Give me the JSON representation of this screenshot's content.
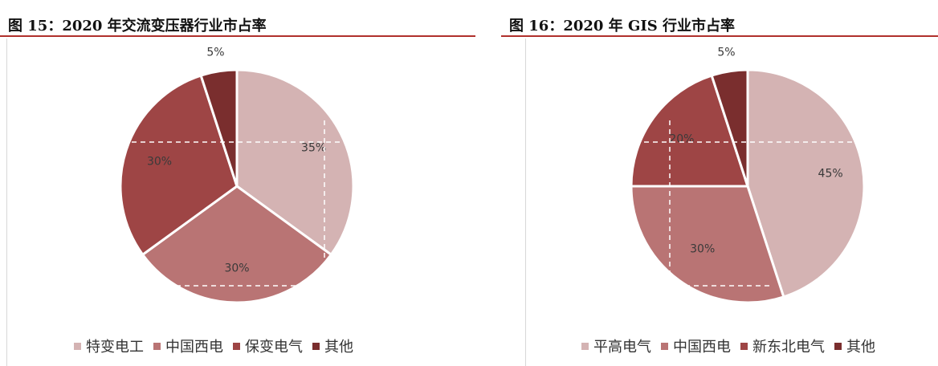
{
  "chart_data": [
    {
      "type": "pie",
      "title": "图 15：2020 年交流变压器行业市占率",
      "categories": [
        "特变电工",
        "中国西电",
        "保变电气",
        "其他"
      ],
      "values": [
        35,
        30,
        30,
        5
      ],
      "value_labels": [
        "35%",
        "30%",
        "30%",
        "5%"
      ],
      "colors": [
        "#d4b3b3",
        "#b97474",
        "#9e4545",
        "#7a2e2e"
      ],
      "legend": "bottom"
    },
    {
      "type": "pie",
      "title": "图 16：2020 年 GIS 行业市占率",
      "categories": [
        "平高电气",
        "中国西电",
        "新东北电气",
        "其他"
      ],
      "values": [
        45,
        30,
        20,
        5
      ],
      "value_labels": [
        "45%",
        "30%",
        "20%",
        "5%"
      ],
      "colors": [
        "#d4b3b3",
        "#b97474",
        "#9e4545",
        "#7a2e2e"
      ],
      "legend": "bottom"
    }
  ]
}
